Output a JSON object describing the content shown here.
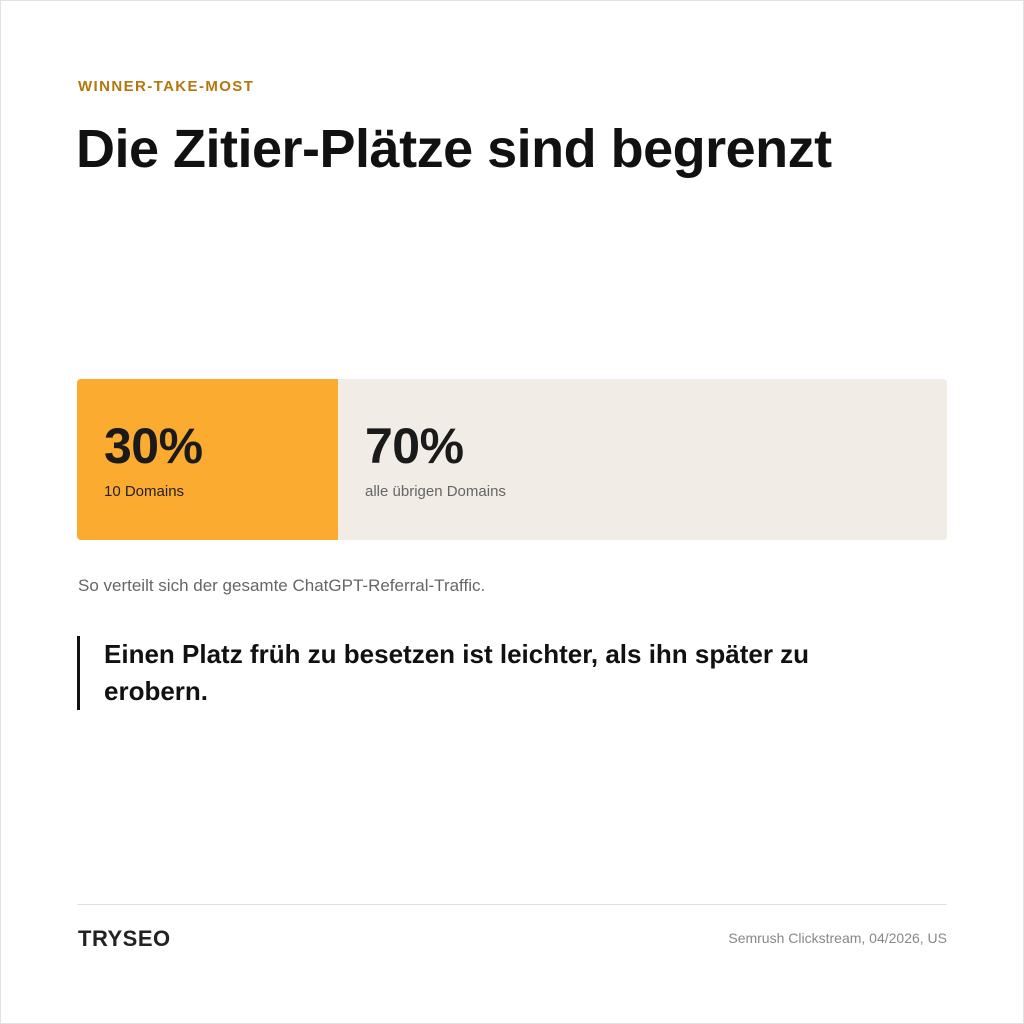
{
  "header": {
    "eyebrow": "WINNER-TAKE-MOST",
    "title": "Die Zitier-Plätze sind begrenzt"
  },
  "chart_data": {
    "type": "bar",
    "subtype": "stacked-100-percent",
    "categories": [
      "10 Domains",
      "alle übrigen Domains"
    ],
    "values": [
      30,
      70
    ],
    "value_labels": [
      "30%",
      "70%"
    ],
    "unit": "%",
    "colors": [
      "#fbab2f",
      "#f1ede6"
    ],
    "label_colors": [
      "#222222",
      "#666666"
    ],
    "caption": "So verteilt sich der gesamte ChatGPT-Referral-Traffic."
  },
  "quote": {
    "text": "Einen Platz früh zu besetzen ist leichter, als ihn später zu erobern."
  },
  "footer": {
    "logo": "TRYSEO",
    "source": "Semrush Clickstream, 04/2026, US"
  }
}
